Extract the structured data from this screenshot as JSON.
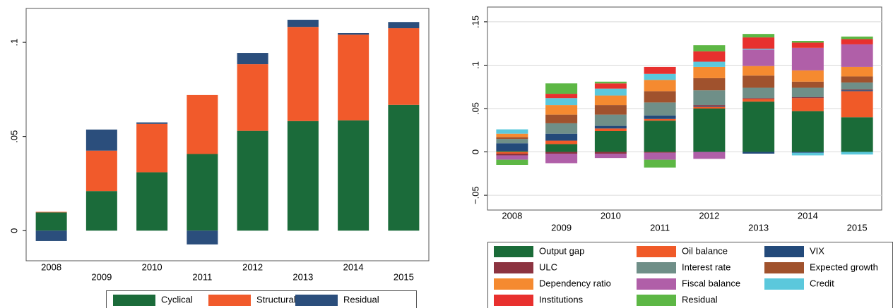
{
  "chart_data": [
    {
      "type": "bar",
      "stacked": true,
      "grid": false,
      "categories": [
        "2008",
        "2009",
        "2010",
        "2011",
        "2012",
        "2013",
        "2014",
        "2015"
      ],
      "ylim": [
        -0.016,
        0.118
      ],
      "yticks": [
        0,
        {
          "value": 0.05,
          "label": ".05"
        },
        {
          "value": 0.1,
          "label": ".1"
        }
      ],
      "series": [
        {
          "name": "Cyclical",
          "color": "#1b6b3a",
          "values": [
            0.0097,
            0.021,
            0.031,
            0.0407,
            0.053,
            0.0582,
            0.0586,
            0.0668
          ]
        },
        {
          "name": "Structural",
          "color": "#f15a2b",
          "values": [
            0.0003,
            0.0215,
            0.0257,
            0.0313,
            0.0354,
            0.05,
            0.0455,
            0.0407
          ]
        },
        {
          "name": "Residual",
          "color": "#2b4e7c",
          "values": [
            -0.0055,
            0.0112,
            0.0008,
            -0.0073,
            0.006,
            0.0038,
            0.0008,
            0.0033
          ]
        }
      ]
    },
    {
      "type": "bar",
      "stacked": true,
      "grid": true,
      "categories": [
        "2008",
        "2009",
        "2010",
        "2011",
        "2012",
        "2013",
        "2014",
        "2015"
      ],
      "ylim": [
        -0.067,
        0.167
      ],
      "yticks": [
        {
          "value": -0.05,
          "label": "−.05"
        },
        0,
        {
          "value": 0.05,
          "label": ".05"
        },
        {
          "value": 0.1,
          "label": ".1"
        },
        {
          "value": 0.15,
          "label": ".15"
        }
      ],
      "series": [
        {
          "name": "Output gap",
          "color": "#1a6b38",
          "values": [
            0.001,
            0.009,
            0.024,
            0.036,
            0.05,
            0.058,
            0.047,
            0.04
          ]
        },
        {
          "name": "Oil balance",
          "color": "#f05a28",
          "values": [
            -0.002,
            0.004,
            0.003,
            0.002,
            0.002,
            0.003,
            0.015,
            0.03
          ]
        },
        {
          "name": "VIX",
          "color": "#234a7a",
          "values": [
            0.009,
            0.008,
            0.003,
            0.004,
            0.001,
            -0.002,
            -0.001,
            0.001
          ]
        },
        {
          "name": "ULC",
          "color": "#8c3340",
          "values": [
            -0.002,
            -0.002,
            -0.002,
            -0.001,
            0.001,
            0.001,
            0.001,
            0.001
          ]
        },
        {
          "name": "Interest rate",
          "color": "#6f8f88",
          "values": [
            0.005,
            0.012,
            0.013,
            0.015,
            0.017,
            0.012,
            0.011,
            0.008
          ]
        },
        {
          "name": "Expected growth",
          "color": "#a0522d",
          "values": [
            0.002,
            0.01,
            0.011,
            0.013,
            0.014,
            0.014,
            0.007,
            0.007
          ]
        },
        {
          "name": "Dependency ratio",
          "color": "#f58a30",
          "values": [
            0.004,
            0.011,
            0.011,
            0.013,
            0.013,
            0.011,
            0.013,
            0.011
          ]
        },
        {
          "name": "Fiscal balance",
          "color": "#b05fa8",
          "values": [
            -0.005,
            -0.011,
            -0.005,
            -0.008,
            -0.008,
            0.019,
            0.026,
            0.026
          ]
        },
        {
          "name": "Credit",
          "color": "#5bc8dc",
          "values": [
            0.005,
            0.008,
            0.008,
            0.007,
            0.006,
            0.001,
            -0.003,
            -0.003
          ]
        },
        {
          "name": "Institutions",
          "color": "#e8302e",
          "values": [
            0,
            0.005,
            0.006,
            0.008,
            0.012,
            0.013,
            0.006,
            0.006
          ]
        },
        {
          "name": "Residual",
          "color": "#5db745",
          "values": [
            -0.006,
            0.012,
            0.002,
            -0.009,
            0.007,
            0.004,
            0.002,
            0.003
          ]
        }
      ]
    }
  ]
}
